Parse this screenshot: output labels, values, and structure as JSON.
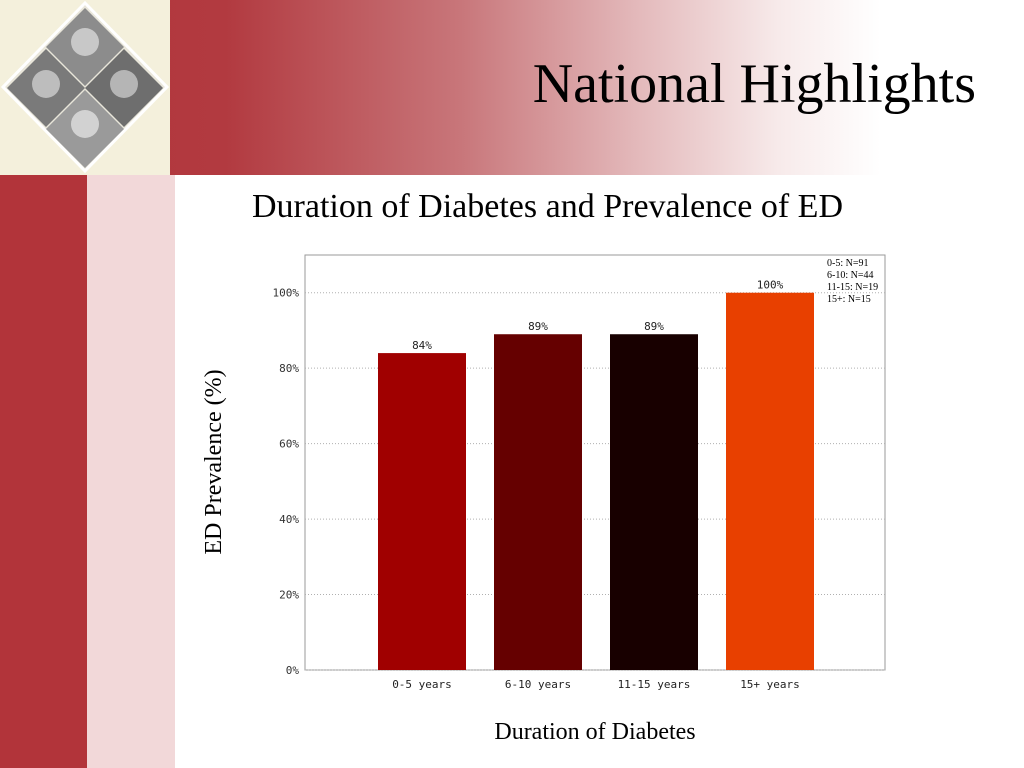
{
  "slide": {
    "title": "National Highlights"
  },
  "chart_data": {
    "type": "bar",
    "title": "Duration of Diabetes and Prevalence of ED",
    "xlabel": "Duration of Diabetes",
    "ylabel": "ED Prevalence (%)",
    "categories": [
      "0-5 years",
      "6-10 years",
      "11-15 years",
      "15+ years"
    ],
    "values": [
      84,
      89,
      89,
      100
    ],
    "value_labels": [
      "84%",
      "89%",
      "89%",
      "100%"
    ],
    "colors": [
      "#a00000",
      "#650000",
      "#180000",
      "#e84000"
    ],
    "ylim": [
      0,
      110
    ],
    "yticks": [
      0,
      20,
      40,
      60,
      80,
      100
    ],
    "ytick_labels": [
      "0%",
      "20%",
      "40%",
      "60%",
      "80%",
      "100%"
    ],
    "grid": true,
    "legend": {
      "placement": "top-right",
      "lines": [
        "0-5:  N=91",
        "6-10:  N=44",
        "11-15:  N=19",
        "15+:  N=15"
      ]
    }
  }
}
